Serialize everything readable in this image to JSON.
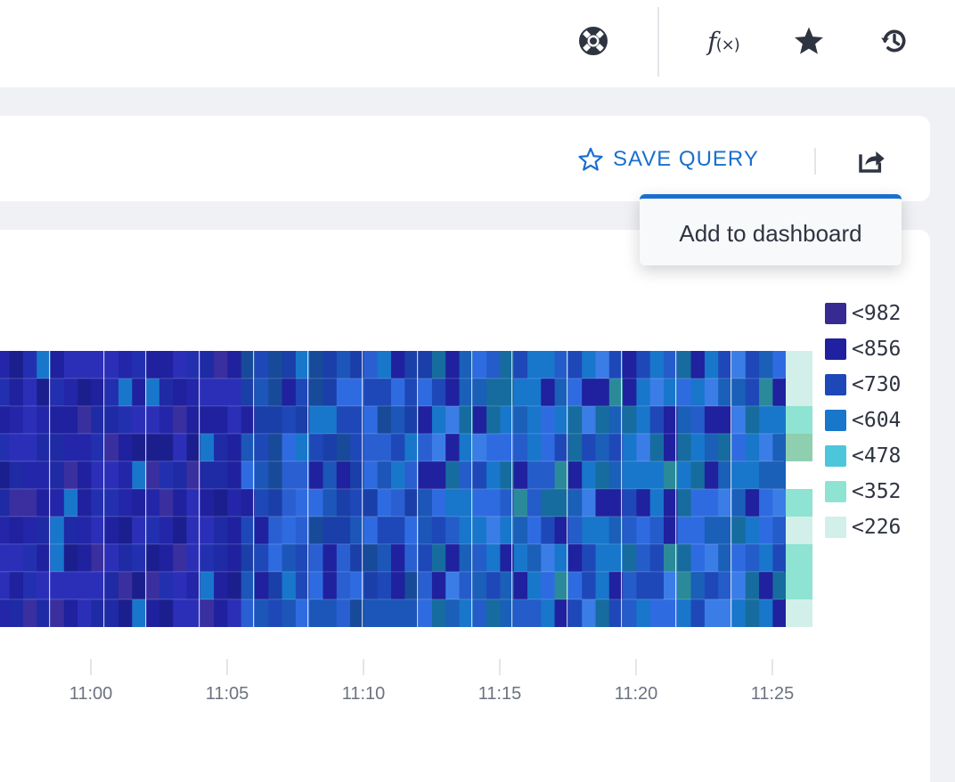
{
  "toolbar": {
    "icons": [
      "help-icon",
      "functions-icon",
      "star-icon",
      "history-icon"
    ],
    "fx_label": "f",
    "fx_sub": "(×)"
  },
  "query_bar": {
    "save_label": "SAVE QUERY",
    "accent_color": "#1a6fce",
    "share_icon": "share-icon"
  },
  "dropdown": {
    "item": "Add to dashboard"
  },
  "legend": [
    {
      "label": "<982",
      "color": "#372a92"
    },
    {
      "label": "<856",
      "color": "#1f219e"
    },
    {
      "label": "<730",
      "color": "#1e48b8"
    },
    {
      "label": "<604",
      "color": "#1876cb"
    },
    {
      "label": "<478",
      "color": "#4dc5db"
    },
    {
      "label": "<352",
      "color": "#8ee3d2"
    },
    {
      "label": "<226",
      "color": "#d2efe9"
    }
  ],
  "chart_data": {
    "type": "heatmap",
    "x_ticks": [
      "11:00",
      "11:05",
      "11:10",
      "11:15",
      "11:20",
      "11:25"
    ],
    "bucket_thresholds": [
      982,
      856,
      730,
      604,
      478,
      352,
      226
    ],
    "grid": true
  }
}
